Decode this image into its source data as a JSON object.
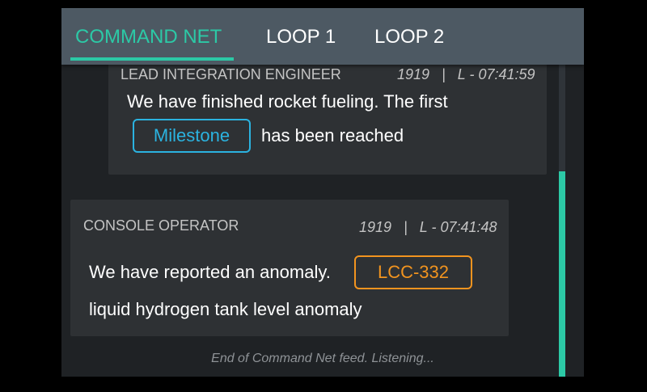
{
  "tabs": [
    {
      "label": "COMMAND NET",
      "active": true
    },
    {
      "label": "LOOP 1",
      "active": false
    },
    {
      "label": "LOOP 2",
      "active": false
    }
  ],
  "messages": [
    {
      "role": "LEAD INTEGRATION ENGINEER",
      "id": "1919",
      "time": "L - 07:41:59",
      "text_line1": "We have finished rocket fueling. The first",
      "chip": "Milestone",
      "text_after_chip": "has been reached"
    },
    {
      "role": "CONSOLE OPERATOR",
      "id": "1919",
      "time": "L - 07:41:48",
      "text_line1": "We have reported an anomaly.",
      "chip": "LCC-332",
      "text_line2": "liquid hydrogen tank level anomaly"
    }
  ],
  "separator": "|",
  "end_note": "End of Command Net feed. Listening...",
  "colors": {
    "accent": "#2cc9a6",
    "tabbar": "#4d5963",
    "milestone_chip": "#2bb3e0",
    "anomaly_chip": "#f2941f"
  }
}
